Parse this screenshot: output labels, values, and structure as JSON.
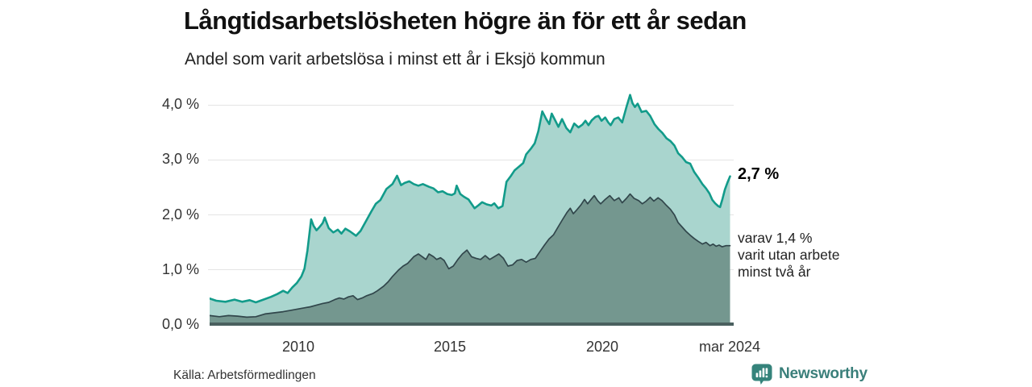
{
  "title": "Långtidsarbetslösheten högre än för ett år sedan",
  "subtitle": "Andel som varit arbetslösa i minst ett år i Eksjö kommun",
  "source": "Källa: Arbetsförmedlingen",
  "branding": {
    "name": "Newsworthy",
    "icon": "bar-chart-pin-icon",
    "color": "#35837b"
  },
  "annotations": {
    "latest_total": {
      "label": "2,7 %",
      "value": 2.7
    },
    "detail": {
      "lines": [
        "varav 1,4 %",
        "varit utan arbete",
        "minst två år"
      ],
      "value": 1.4
    }
  },
  "colors": {
    "total_line": "#129b8a",
    "total_fill": "#a9d5ce",
    "twoyear_line": "#31464b",
    "twoyear_fill": "#74978f",
    "baseline": "#4a605f",
    "gridline": "#e4e4e4"
  },
  "chart_data": {
    "type": "area",
    "title": "Långtidsarbetslösheten högre än för ett år sedan",
    "subtitle": "Andel som varit arbetslösa i minst ett år i Eksjö kommun",
    "xlabel": "",
    "ylabel": "",
    "x_range": [
      2007.08,
      2024.25
    ],
    "y_range": [
      0,
      4.3
    ],
    "grid": true,
    "legend": "none (direct annotations at line ends)",
    "x_axis": {
      "ticks": [
        {
          "label": "2010",
          "year": 2010
        },
        {
          "label": "2015",
          "year": 2015
        },
        {
          "label": "2020",
          "year": 2020
        },
        {
          "label": "mar 2024",
          "year": 2024.21
        }
      ]
    },
    "y_axis": {
      "ticks": [
        {
          "label": "0,0 %",
          "value": 0
        },
        {
          "label": "1,0 %",
          "value": 1
        },
        {
          "label": "2,0 %",
          "value": 2
        },
        {
          "label": "3,0 %",
          "value": 3
        },
        {
          "label": "4,0 %",
          "value": 4
        }
      ]
    },
    "series": [
      {
        "name": "Andel som varit arbetslösa i minst ett år",
        "end_label": "2,7 %",
        "end_value": 2.7,
        "line_color": "#129b8a",
        "fill_color": "#a9d5ce",
        "line_width": 2.6,
        "points": [
          [
            2007.08,
            0.48
          ],
          [
            2007.3,
            0.44
          ],
          [
            2007.6,
            0.42
          ],
          [
            2007.9,
            0.46
          ],
          [
            2008.15,
            0.42
          ],
          [
            2008.4,
            0.45
          ],
          [
            2008.6,
            0.41
          ],
          [
            2008.85,
            0.46
          ],
          [
            2009.1,
            0.51
          ],
          [
            2009.3,
            0.56
          ],
          [
            2009.5,
            0.62
          ],
          [
            2009.65,
            0.58
          ],
          [
            2009.8,
            0.68
          ],
          [
            2009.95,
            0.76
          ],
          [
            2010.1,
            0.88
          ],
          [
            2010.2,
            1.02
          ],
          [
            2010.3,
            1.35
          ],
          [
            2010.42,
            1.92
          ],
          [
            2010.5,
            1.8
          ],
          [
            2010.6,
            1.72
          ],
          [
            2010.7,
            1.78
          ],
          [
            2010.8,
            1.85
          ],
          [
            2010.87,
            1.95
          ],
          [
            2011.0,
            1.76
          ],
          [
            2011.15,
            1.68
          ],
          [
            2011.3,
            1.73
          ],
          [
            2011.42,
            1.66
          ],
          [
            2011.55,
            1.75
          ],
          [
            2011.7,
            1.7
          ],
          [
            2011.9,
            1.62
          ],
          [
            2012.05,
            1.71
          ],
          [
            2012.2,
            1.86
          ],
          [
            2012.4,
            2.06
          ],
          [
            2012.55,
            2.2
          ],
          [
            2012.7,
            2.27
          ],
          [
            2012.9,
            2.47
          ],
          [
            2013.1,
            2.56
          ],
          [
            2013.25,
            2.71
          ],
          [
            2013.38,
            2.54
          ],
          [
            2013.5,
            2.58
          ],
          [
            2013.65,
            2.61
          ],
          [
            2013.8,
            2.56
          ],
          [
            2013.95,
            2.53
          ],
          [
            2014.1,
            2.56
          ],
          [
            2014.3,
            2.51
          ],
          [
            2014.45,
            2.48
          ],
          [
            2014.6,
            2.41
          ],
          [
            2014.75,
            2.43
          ],
          [
            2014.9,
            2.38
          ],
          [
            2015.05,
            2.36
          ],
          [
            2015.15,
            2.39
          ],
          [
            2015.21,
            2.53
          ],
          [
            2015.33,
            2.38
          ],
          [
            2015.45,
            2.33
          ],
          [
            2015.6,
            2.28
          ],
          [
            2015.8,
            2.12
          ],
          [
            2015.92,
            2.17
          ],
          [
            2016.05,
            2.23
          ],
          [
            2016.2,
            2.19
          ],
          [
            2016.35,
            2.17
          ],
          [
            2016.45,
            2.21
          ],
          [
            2016.58,
            2.12
          ],
          [
            2016.72,
            2.16
          ],
          [
            2016.85,
            2.6
          ],
          [
            2017.0,
            2.71
          ],
          [
            2017.12,
            2.81
          ],
          [
            2017.25,
            2.87
          ],
          [
            2017.4,
            2.94
          ],
          [
            2017.5,
            3.1
          ],
          [
            2017.65,
            3.2
          ],
          [
            2017.78,
            3.3
          ],
          [
            2017.9,
            3.52
          ],
          [
            2018.03,
            3.88
          ],
          [
            2018.16,
            3.74
          ],
          [
            2018.26,
            3.65
          ],
          [
            2018.34,
            3.84
          ],
          [
            2018.47,
            3.7
          ],
          [
            2018.56,
            3.6
          ],
          [
            2018.68,
            3.74
          ],
          [
            2018.82,
            3.58
          ],
          [
            2018.95,
            3.5
          ],
          [
            2019.08,
            3.66
          ],
          [
            2019.22,
            3.59
          ],
          [
            2019.35,
            3.64
          ],
          [
            2019.45,
            3.71
          ],
          [
            2019.55,
            3.63
          ],
          [
            2019.66,
            3.72
          ],
          [
            2019.78,
            3.78
          ],
          [
            2019.88,
            3.8
          ],
          [
            2019.98,
            3.71
          ],
          [
            2020.1,
            3.77
          ],
          [
            2020.2,
            3.68
          ],
          [
            2020.28,
            3.63
          ],
          [
            2020.4,
            3.74
          ],
          [
            2020.53,
            3.77
          ],
          [
            2020.66,
            3.68
          ],
          [
            2020.8,
            3.96
          ],
          [
            2020.92,
            4.18
          ],
          [
            2021.0,
            4.03
          ],
          [
            2021.08,
            3.96
          ],
          [
            2021.17,
            4.02
          ],
          [
            2021.3,
            3.87
          ],
          [
            2021.45,
            3.89
          ],
          [
            2021.58,
            3.8
          ],
          [
            2021.72,
            3.65
          ],
          [
            2021.85,
            3.56
          ],
          [
            2021.98,
            3.49
          ],
          [
            2022.12,
            3.39
          ],
          [
            2022.25,
            3.34
          ],
          [
            2022.38,
            3.26
          ],
          [
            2022.5,
            3.12
          ],
          [
            2022.63,
            3.05
          ],
          [
            2022.76,
            2.96
          ],
          [
            2022.9,
            2.93
          ],
          [
            2023.03,
            2.78
          ],
          [
            2023.16,
            2.68
          ],
          [
            2023.3,
            2.56
          ],
          [
            2023.42,
            2.48
          ],
          [
            2023.53,
            2.39
          ],
          [
            2023.63,
            2.27
          ],
          [
            2023.72,
            2.21
          ],
          [
            2023.82,
            2.16
          ],
          [
            2023.88,
            2.14
          ],
          [
            2023.96,
            2.29
          ],
          [
            2024.04,
            2.46
          ],
          [
            2024.12,
            2.58
          ],
          [
            2024.21,
            2.7
          ]
        ]
      },
      {
        "name": "Varav utan arbete minst två år",
        "end_label": "1,4 %",
        "end_value": 1.4,
        "line_color": "#31464b",
        "fill_color": "#74978f",
        "line_width": 1.7,
        "points": [
          [
            2007.08,
            0.17
          ],
          [
            2007.4,
            0.15
          ],
          [
            2007.7,
            0.17
          ],
          [
            2008.0,
            0.16
          ],
          [
            2008.3,
            0.14
          ],
          [
            2008.6,
            0.15
          ],
          [
            2008.9,
            0.2
          ],
          [
            2009.2,
            0.22
          ],
          [
            2009.5,
            0.24
          ],
          [
            2009.8,
            0.27
          ],
          [
            2010.0,
            0.29
          ],
          [
            2010.2,
            0.31
          ],
          [
            2010.4,
            0.33
          ],
          [
            2010.6,
            0.36
          ],
          [
            2010.8,
            0.39
          ],
          [
            2011.0,
            0.41
          ],
          [
            2011.2,
            0.46
          ],
          [
            2011.35,
            0.49
          ],
          [
            2011.5,
            0.47
          ],
          [
            2011.65,
            0.51
          ],
          [
            2011.8,
            0.53
          ],
          [
            2011.95,
            0.46
          ],
          [
            2012.1,
            0.49
          ],
          [
            2012.25,
            0.53
          ],
          [
            2012.45,
            0.57
          ],
          [
            2012.6,
            0.62
          ],
          [
            2012.8,
            0.7
          ],
          [
            2012.95,
            0.78
          ],
          [
            2013.1,
            0.88
          ],
          [
            2013.3,
            1.0
          ],
          [
            2013.45,
            1.07
          ],
          [
            2013.6,
            1.12
          ],
          [
            2013.8,
            1.24
          ],
          [
            2013.95,
            1.29
          ],
          [
            2014.08,
            1.24
          ],
          [
            2014.2,
            1.19
          ],
          [
            2014.3,
            1.29
          ],
          [
            2014.45,
            1.24
          ],
          [
            2014.55,
            1.19
          ],
          [
            2014.68,
            1.22
          ],
          [
            2014.8,
            1.17
          ],
          [
            2014.95,
            1.02
          ],
          [
            2015.1,
            1.07
          ],
          [
            2015.25,
            1.19
          ],
          [
            2015.4,
            1.29
          ],
          [
            2015.55,
            1.36
          ],
          [
            2015.7,
            1.24
          ],
          [
            2015.85,
            1.21
          ],
          [
            2016.0,
            1.19
          ],
          [
            2016.15,
            1.26
          ],
          [
            2016.3,
            1.19
          ],
          [
            2016.45,
            1.24
          ],
          [
            2016.6,
            1.29
          ],
          [
            2016.75,
            1.21
          ],
          [
            2016.9,
            1.07
          ],
          [
            2017.05,
            1.09
          ],
          [
            2017.2,
            1.17
          ],
          [
            2017.35,
            1.19
          ],
          [
            2017.5,
            1.14
          ],
          [
            2017.65,
            1.19
          ],
          [
            2017.8,
            1.21
          ],
          [
            2017.95,
            1.33
          ],
          [
            2018.1,
            1.45
          ],
          [
            2018.25,
            1.56
          ],
          [
            2018.4,
            1.64
          ],
          [
            2018.55,
            1.78
          ],
          [
            2018.7,
            1.92
          ],
          [
            2018.85,
            2.05
          ],
          [
            2018.95,
            2.12
          ],
          [
            2019.05,
            2.02
          ],
          [
            2019.15,
            2.08
          ],
          [
            2019.3,
            2.18
          ],
          [
            2019.42,
            2.28
          ],
          [
            2019.52,
            2.2
          ],
          [
            2019.62,
            2.27
          ],
          [
            2019.74,
            2.35
          ],
          [
            2019.85,
            2.26
          ],
          [
            2019.95,
            2.2
          ],
          [
            2020.1,
            2.28
          ],
          [
            2020.25,
            2.35
          ],
          [
            2020.4,
            2.26
          ],
          [
            2020.55,
            2.31
          ],
          [
            2020.66,
            2.22
          ],
          [
            2020.8,
            2.3
          ],
          [
            2020.92,
            2.38
          ],
          [
            2021.05,
            2.3
          ],
          [
            2021.2,
            2.26
          ],
          [
            2021.32,
            2.2
          ],
          [
            2021.45,
            2.25
          ],
          [
            2021.58,
            2.32
          ],
          [
            2021.7,
            2.25
          ],
          [
            2021.84,
            2.31
          ],
          [
            2021.97,
            2.26
          ],
          [
            2022.12,
            2.17
          ],
          [
            2022.25,
            2.1
          ],
          [
            2022.38,
            2.0
          ],
          [
            2022.5,
            1.86
          ],
          [
            2022.63,
            1.78
          ],
          [
            2022.76,
            1.7
          ],
          [
            2022.9,
            1.63
          ],
          [
            2023.03,
            1.57
          ],
          [
            2023.16,
            1.52
          ],
          [
            2023.3,
            1.47
          ],
          [
            2023.42,
            1.5
          ],
          [
            2023.55,
            1.44
          ],
          [
            2023.65,
            1.47
          ],
          [
            2023.75,
            1.43
          ],
          [
            2023.85,
            1.45
          ],
          [
            2023.95,
            1.42
          ],
          [
            2024.08,
            1.44
          ],
          [
            2024.21,
            1.44
          ]
        ]
      }
    ]
  }
}
